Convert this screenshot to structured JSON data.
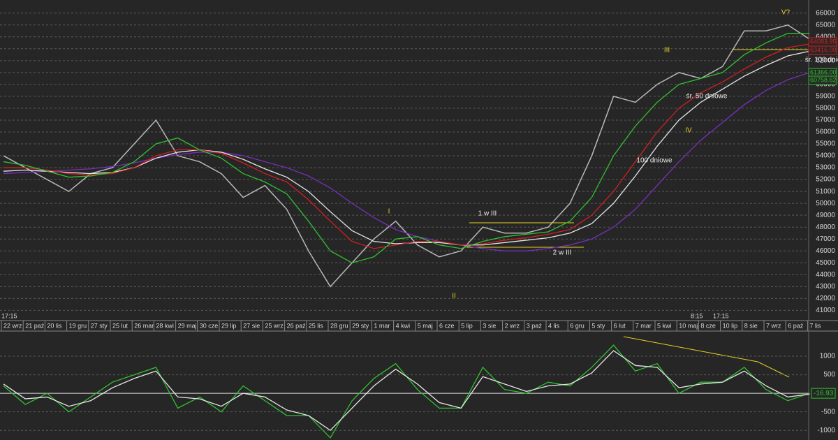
{
  "chart_data": [
    {
      "type": "line",
      "categories": [
        "22 wrz",
        "21 paź",
        "20 lis",
        "19 gru",
        "27 sty",
        "25 lut",
        "26 mar",
        "28 kwi",
        "29 maj",
        "30 cze",
        "29 lip",
        "27 sie",
        "25 wrz",
        "26 paź",
        "25 lis",
        "28 gru",
        "29 sty",
        "1 mar",
        "4 kwi",
        "5 maj",
        "6 cze",
        "5 lip",
        "3 sie",
        "2 wrz",
        "3 paź",
        "4 lis",
        "6 gru",
        "5 sty",
        "6 lut",
        "7 mar",
        "5 kwi",
        "10 maj",
        "8 cze",
        "10 lip",
        "8 sie",
        "7 wrz",
        "6 paź",
        "7 lis"
      ],
      "series": [
        {
          "color": "#b8b8b8",
          "values": [
            54000,
            53000,
            52000,
            51000,
            52500,
            53000,
            55000,
            57000,
            54000,
            53500,
            52500,
            50500,
            51500,
            49500,
            46000,
            43000,
            45000,
            47000,
            48500,
            46500,
            45500,
            46000,
            48000,
            47500,
            47500,
            48000,
            50000,
            54000,
            59000,
            58500,
            60000,
            61000,
            60500,
            61500,
            64500,
            64500,
            65000,
            63800
          ]
        },
        {
          "color": "#7a2fc0",
          "values": [
            52500,
            52600,
            52700,
            52800,
            52900,
            53100,
            53400,
            53800,
            54100,
            54300,
            54300,
            54000,
            53500,
            53000,
            52300,
            51300,
            50000,
            48800,
            47800,
            47200,
            46800,
            46500,
            46200,
            46000,
            46000,
            46200,
            46500,
            47000,
            48000,
            49500,
            51500,
            53500,
            55300,
            56800,
            58300,
            59500,
            60400,
            61000
          ]
        },
        {
          "color": "#e6e6e6",
          "values": [
            52700,
            52800,
            52700,
            52600,
            52500,
            52600,
            53000,
            53800,
            54300,
            54500,
            54300,
            53700,
            52900,
            52200,
            51000,
            49300,
            47700,
            46800,
            46600,
            46700,
            46700,
            46500,
            46500,
            46700,
            46900,
            47100,
            47500,
            48300,
            50000,
            52300,
            54800,
            57000,
            58500,
            59600,
            60700,
            61600,
            62400,
            62800
          ]
        },
        {
          "color": "#d02020",
          "values": [
            53000,
            53000,
            52800,
            52500,
            52400,
            52500,
            53000,
            54000,
            54500,
            54500,
            54200,
            53400,
            52500,
            51800,
            50300,
            48500,
            46800,
            46200,
            46500,
            46800,
            46800,
            46500,
            46600,
            46900,
            47100,
            47400,
            47800,
            49000,
            51000,
            53500,
            56000,
            58000,
            59300,
            60200,
            61300,
            62300,
            63100,
            63400
          ]
        },
        {
          "color": "#30c030",
          "values": [
            53500,
            53200,
            52700,
            52200,
            52300,
            52600,
            53500,
            55000,
            55500,
            54500,
            53800,
            52500,
            51800,
            50800,
            48500,
            46000,
            45000,
            45500,
            47000,
            47200,
            46500,
            46200,
            46800,
            47200,
            47400,
            47600,
            48500,
            50500,
            54000,
            56500,
            58500,
            60000,
            60500,
            61000,
            62500,
            63500,
            64300,
            64300
          ]
        }
      ],
      "ylim": [
        40200,
        67100
      ],
      "yticks": [
        41000,
        42000,
        43000,
        44000,
        45000,
        46000,
        47000,
        48000,
        49000,
        50000,
        51000,
        52000,
        53000,
        54000,
        55000,
        56000,
        57000,
        58000,
        59000,
        60000,
        61000,
        62000,
        63000,
        64000,
        65000,
        66000
      ],
      "grid": true,
      "annotations": [
        "I",
        "II",
        "III",
        "IV",
        "V?",
        "1 w III",
        "2 w III",
        "100 dniowe",
        "śr. 50 dniowe",
        "śr. 100 dniowe"
      ],
      "time_labels": [
        "17:15",
        "8:15",
        "17:15"
      ],
      "value_boxes": [
        {
          "label": "64083.95",
          "color": "#d02020"
        },
        {
          "label": "63416.00",
          "color": "#d02020"
        },
        {
          "label": "61366.00",
          "color": "#30c030"
        },
        {
          "label": "60758.62",
          "color": "#30c030"
        }
      ]
    },
    {
      "type": "line",
      "series": [
        {
          "color": "#30c030",
          "values": [
            200,
            -300,
            0,
            -500,
            -100,
            300,
            500,
            700,
            -400,
            -100,
            -500,
            200,
            -200,
            -600,
            -600,
            -1200,
            -200,
            400,
            800,
            100,
            -400,
            -400,
            700,
            100,
            0,
            300,
            200,
            700,
            1300,
            600,
            800,
            0,
            300,
            300,
            700,
            100,
            -200,
            0
          ]
        },
        {
          "color": "#e6e6e6",
          "values": [
            250,
            -150,
            -100,
            -350,
            -200,
            150,
            400,
            600,
            -100,
            -150,
            -350,
            0,
            -100,
            -450,
            -600,
            -1000,
            -400,
            200,
            650,
            250,
            -250,
            -400,
            450,
            250,
            50,
            200,
            250,
            550,
            1150,
            750,
            700,
            150,
            250,
            300,
            600,
            200,
            -100,
            -20
          ]
        }
      ],
      "ylim": [
        -1260,
        1660
      ],
      "yticks": [
        -1000,
        -500,
        500,
        1000
      ],
      "last_value": "-16.93"
    }
  ]
}
